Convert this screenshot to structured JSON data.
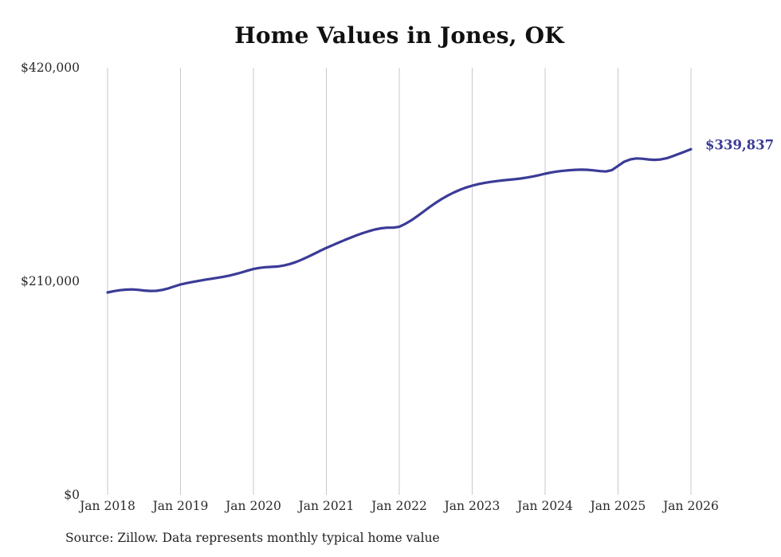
{
  "page": {
    "title": "Home Values in Jones, OK",
    "source_note": "Source: Zillow. Data represents monthly typical home value"
  },
  "chart_data": {
    "type": "line",
    "title": "Home Values in Jones, OK",
    "series_name": "Monthly typical home value",
    "x_start": "Jan 2018",
    "x_end": "Jan 2026",
    "x_interval": "monthly",
    "x_tick_labels": [
      "Jan 2018",
      "Jan 2019",
      "Jan 2020",
      "Jan 2021",
      "Jan 2022",
      "Jan 2023",
      "Jan 2024",
      "Jan 2025",
      "Jan 2026"
    ],
    "y_ticks": [
      0,
      210000,
      420000
    ],
    "y_tick_labels": [
      "$0",
      "$210,000",
      "$420,000"
    ],
    "ylim": [
      0,
      420000
    ],
    "grid": "vertical-only",
    "legend": "none",
    "line_color": "#3B3B98",
    "gridline_color": "#C9C9C9",
    "axis_label_color": "#2B2B2B",
    "end_label": "$339,837",
    "final_value": 339837,
    "values": [
      199000,
      200300,
      201200,
      201800,
      202000,
      201600,
      200900,
      200500,
      200600,
      201500,
      203000,
      205000,
      206900,
      208200,
      209400,
      210500,
      211500,
      212400,
      213400,
      214400,
      215600,
      217000,
      218600,
      220400,
      222100,
      223200,
      223900,
      224200,
      224600,
      225500,
      227000,
      229000,
      231400,
      234100,
      237000,
      240000,
      242800,
      245400,
      248000,
      250500,
      252900,
      255200,
      257400,
      259300,
      260900,
      262100,
      262700,
      262700,
      263600,
      266500,
      270000,
      274200,
      278600,
      283000,
      287200,
      291000,
      294400,
      297400,
      300000,
      302200,
      304000,
      305500,
      306700,
      307700,
      308500,
      309200,
      309800,
      310400,
      311100,
      312000,
      313100,
      314400,
      315800,
      317000,
      318000,
      318700,
      319200,
      319600,
      319800,
      319600,
      319100,
      318400,
      318000,
      319400,
      323500,
      327500,
      329800,
      330800,
      330500,
      329800,
      329400,
      329800,
      331000,
      333000,
      335300,
      337600,
      339837
    ],
    "source": "Source: Zillow. Data represents monthly typical home value"
  }
}
